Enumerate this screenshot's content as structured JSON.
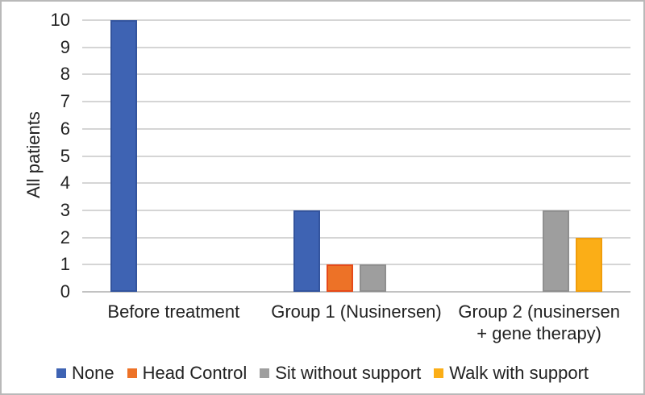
{
  "figure": {
    "frame_color": "#b9b9b9",
    "background_color": "#ffffff",
    "text_color": "#222222"
  },
  "chart_data": {
    "type": "bar",
    "title": "",
    "xlabel": "",
    "ylabel": "All patients",
    "categories": [
      "Before treatment",
      "Group 1 (Nusinersen)",
      "Group 2 (nusinersen\n+ gene therapy)"
    ],
    "series": [
      {
        "name": "None",
        "color": "#3e63b3",
        "border_color": "#33549e",
        "values": [
          10,
          3,
          0
        ]
      },
      {
        "name": "Head Control",
        "color": "#ed7227",
        "border_color": "#e64a19",
        "values": [
          0,
          1,
          0
        ]
      },
      {
        "name": "Sit without support",
        "color": "#9e9e9e",
        "border_color": "#8f8f8f",
        "values": [
          0,
          1,
          3
        ]
      },
      {
        "name": "Walk with support",
        "color": "#fbae17",
        "border_color": "#f09d0b",
        "values": [
          0,
          0,
          2
        ]
      }
    ],
    "ylim": [
      0,
      10
    ],
    "ytick_step": 1,
    "grid": "horizontal",
    "gridline_color": "#d5d5d5",
    "axis_line_color": "#c2c2c2",
    "legend_position": "bottom"
  }
}
